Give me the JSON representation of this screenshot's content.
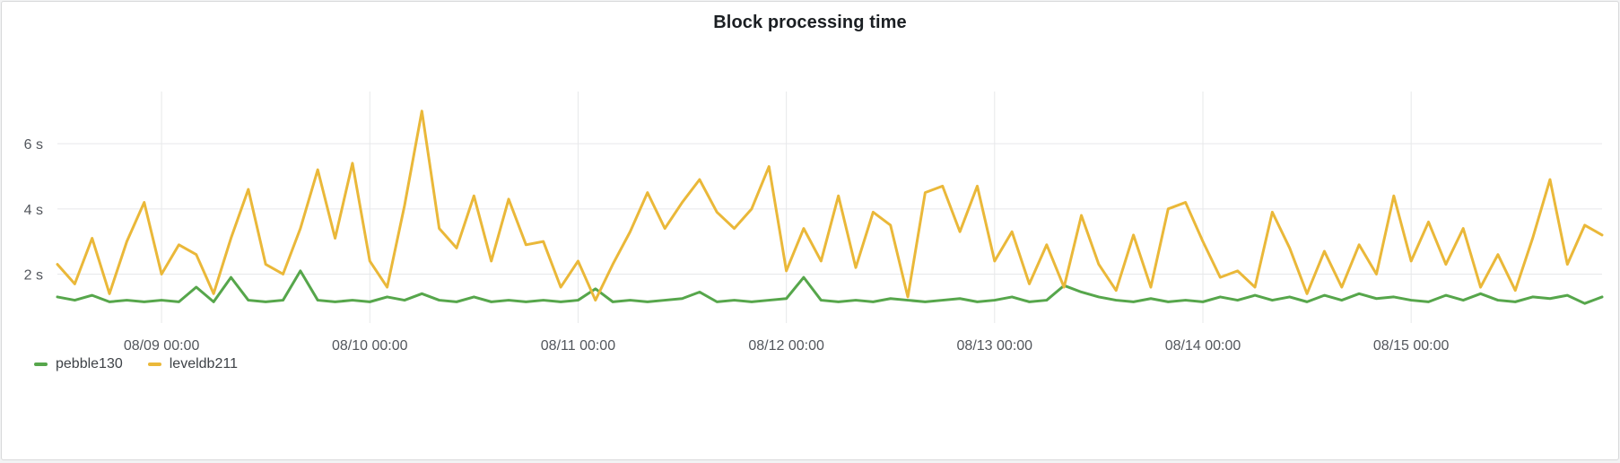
{
  "panel": {
    "title": "Block processing time"
  },
  "theme": {
    "background": "#ffffff",
    "panel_border": "#d8d9da",
    "grid_color": "#e7e8ea",
    "axis_text_color": "#52565c",
    "title_color": "#1b1f23",
    "legend_text_color": "#3e4247"
  },
  "chart_data": {
    "type": "line",
    "title": "Block processing time",
    "xlabel": "",
    "ylabel": "",
    "y_unit": "s",
    "x_range": [
      0,
      178
    ],
    "ylim": [
      0.5,
      7.6
    ],
    "sample_interval_hours": 2,
    "grid": true,
    "legend_position": "bottom-left",
    "x_ticks": [
      {
        "hour": 12,
        "label": "08/09 00:00"
      },
      {
        "hour": 36,
        "label": "08/10 00:00"
      },
      {
        "hour": 60,
        "label": "08/11 00:00"
      },
      {
        "hour": 84,
        "label": "08/12 00:00"
      },
      {
        "hour": 108,
        "label": "08/13 00:00"
      },
      {
        "hour": 132,
        "label": "08/14 00:00"
      },
      {
        "hour": 156,
        "label": "08/15 00:00"
      }
    ],
    "y_ticks": [
      {
        "value": 2,
        "label": "2 s"
      },
      {
        "value": 4,
        "label": "4 s"
      },
      {
        "value": 6,
        "label": "6 s"
      }
    ],
    "series": [
      {
        "name": "pebble130",
        "color": "#56a64b",
        "values": [
          1.3,
          1.2,
          1.35,
          1.15,
          1.2,
          1.15,
          1.2,
          1.15,
          1.6,
          1.15,
          1.9,
          1.2,
          1.15,
          1.2,
          2.1,
          1.2,
          1.15,
          1.2,
          1.15,
          1.3,
          1.2,
          1.4,
          1.2,
          1.15,
          1.3,
          1.15,
          1.2,
          1.15,
          1.2,
          1.15,
          1.2,
          1.55,
          1.15,
          1.2,
          1.15,
          1.2,
          1.25,
          1.45,
          1.15,
          1.2,
          1.15,
          1.2,
          1.25,
          1.9,
          1.2,
          1.15,
          1.2,
          1.15,
          1.25,
          1.2,
          1.15,
          1.2,
          1.25,
          1.15,
          1.2,
          1.3,
          1.15,
          1.2,
          1.65,
          1.45,
          1.3,
          1.2,
          1.15,
          1.25,
          1.15,
          1.2,
          1.15,
          1.3,
          1.2,
          1.35,
          1.2,
          1.3,
          1.15,
          1.35,
          1.2,
          1.4,
          1.25,
          1.3,
          1.2,
          1.15,
          1.35,
          1.2,
          1.4,
          1.2,
          1.15,
          1.3,
          1.25,
          1.35,
          1.1,
          1.3
        ]
      },
      {
        "name": "leveldb211",
        "color": "#eab839",
        "values": [
          2.3,
          1.7,
          3.1,
          1.4,
          3.0,
          4.2,
          2.0,
          2.9,
          2.6,
          1.4,
          3.1,
          4.6,
          2.3,
          2.0,
          3.4,
          5.2,
          3.1,
          5.4,
          2.4,
          1.6,
          4.1,
          7.0,
          3.4,
          2.8,
          4.4,
          2.4,
          4.3,
          2.9,
          3.0,
          1.6,
          2.4,
          1.2,
          2.3,
          3.3,
          4.5,
          3.4,
          4.2,
          4.9,
          3.9,
          3.4,
          4.0,
          5.3,
          2.1,
          3.4,
          2.4,
          4.4,
          2.2,
          3.9,
          3.5,
          1.3,
          4.5,
          4.7,
          3.3,
          4.7,
          2.4,
          3.3,
          1.7,
          2.9,
          1.6,
          3.8,
          2.3,
          1.5,
          3.2,
          1.6,
          4.0,
          4.2,
          3.0,
          1.9,
          2.1,
          1.6,
          3.9,
          2.8,
          1.4,
          2.7,
          1.6,
          2.9,
          2.0,
          4.4,
          2.4,
          3.6,
          2.3,
          3.4,
          1.6,
          2.6,
          1.5,
          3.1,
          4.9,
          2.3,
          3.5,
          3.2
        ]
      }
    ]
  }
}
